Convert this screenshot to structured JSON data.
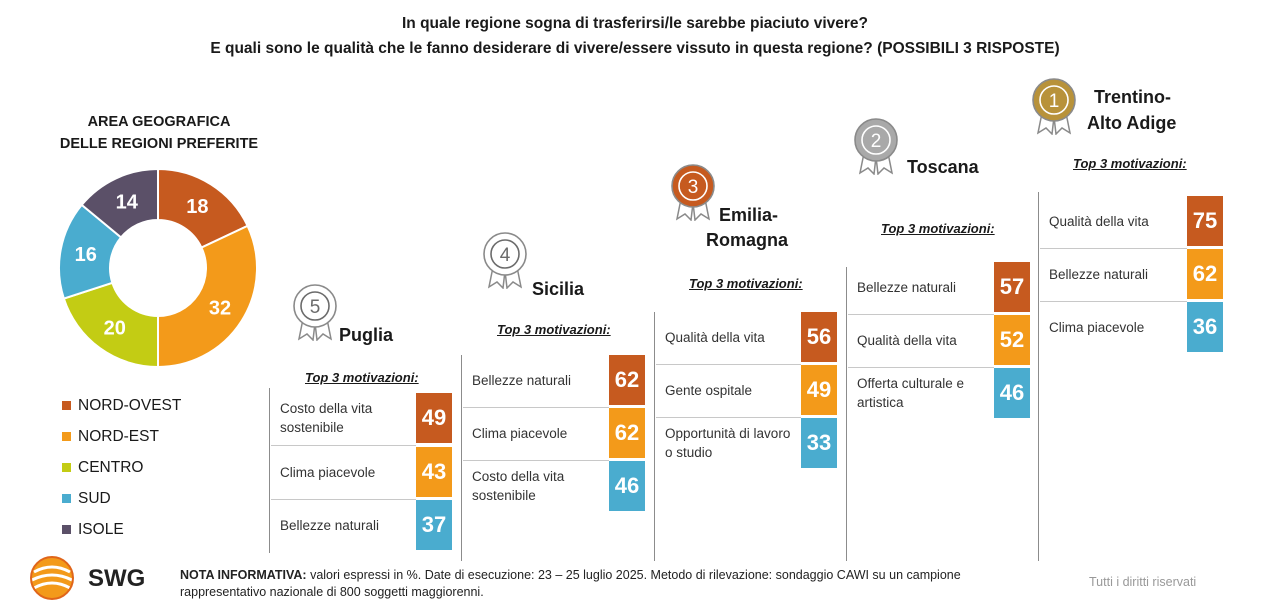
{
  "header": {
    "title_line1": "In quale regione sogna di trasferirsi/le sarebbe piaciuto vivere?",
    "title_line2": "E quali sono le qualità che le fanno desiderare di vivere/essere vissuto in questa regione? (POSSIBILI 3 RISPOSTE)"
  },
  "chart_data": [
    {
      "type": "pie",
      "title_line1": "AREA GEOGRAFICA",
      "title_line2": "DELLE REGIONI PREFERITE",
      "categories": [
        "NORD-OVEST",
        "NORD-EST",
        "CENTRO",
        "SUD",
        "ISOLE"
      ],
      "values": [
        18,
        32,
        20,
        16,
        14
      ],
      "colors": [
        "#c65a1f",
        "#f39a1a",
        "#c3cc14",
        "#4aaccf",
        "#5b5068"
      ]
    },
    {
      "type": "table",
      "top3_label": "Top 3 motivazioni:",
      "regions": [
        {
          "rank": "5",
          "name_lines": [
            "Puglia"
          ],
          "reasons": [
            {
              "label": "Costo della vita sostenibile",
              "value": 49
            },
            {
              "label": "Clima piacevole",
              "value": 43
            },
            {
              "label": "Bellezze naturali",
              "value": 37
            }
          ]
        },
        {
          "rank": "4",
          "name_lines": [
            "Sicilia"
          ],
          "reasons": [
            {
              "label": "Bellezze naturali",
              "value": 62
            },
            {
              "label": "Clima piacevole",
              "value": 62
            },
            {
              "label": "Costo della vita sostenibile",
              "value": 46
            }
          ]
        },
        {
          "rank": "3",
          "name_lines": [
            "Emilia-",
            "Romagna"
          ],
          "reasons": [
            {
              "label": "Qualità della vita",
              "value": 56
            },
            {
              "label": "Gente ospitale",
              "value": 49
            },
            {
              "label": "Opportunità di lavoro o studio",
              "value": 33
            }
          ]
        },
        {
          "rank": "2",
          "name_lines": [
            "Toscana"
          ],
          "reasons": [
            {
              "label": "Bellezze naturali",
              "value": 57
            },
            {
              "label": "Qualità della vita",
              "value": 52
            },
            {
              "label": "Offerta culturale e artistica",
              "value": 46
            }
          ]
        },
        {
          "rank": "1",
          "name_lines": [
            "Trentino-",
            "Alto Adige"
          ],
          "reasons": [
            {
              "label": "Qualità della vita",
              "value": 75
            },
            {
              "label": "Bellezze naturali",
              "value": 62
            },
            {
              "label": "Clima piacevole",
              "value": 36
            }
          ]
        }
      ],
      "value_colors": [
        "#c65a1f",
        "#f39a1a",
        "#4aaccf"
      ]
    }
  ],
  "footer": {
    "brand": "SWG",
    "note_label": "NOTA INFORMATIVA:",
    "note_line1": " valori espressi in %. Date di esecuzione: 23 – 25 luglio 2025. Metodo di rilevazione: sondaggio CAWI su un campione",
    "note_line2": "rappresentativo nazionale di 800 soggetti maggiorenni.",
    "rights": "Tutti i diritti riservati"
  },
  "medal_colors": {
    "1": "#b8923a",
    "2": "#a9a9a9",
    "3": "#c65a1f",
    "4": "#ffffff",
    "5": "#ffffff"
  }
}
